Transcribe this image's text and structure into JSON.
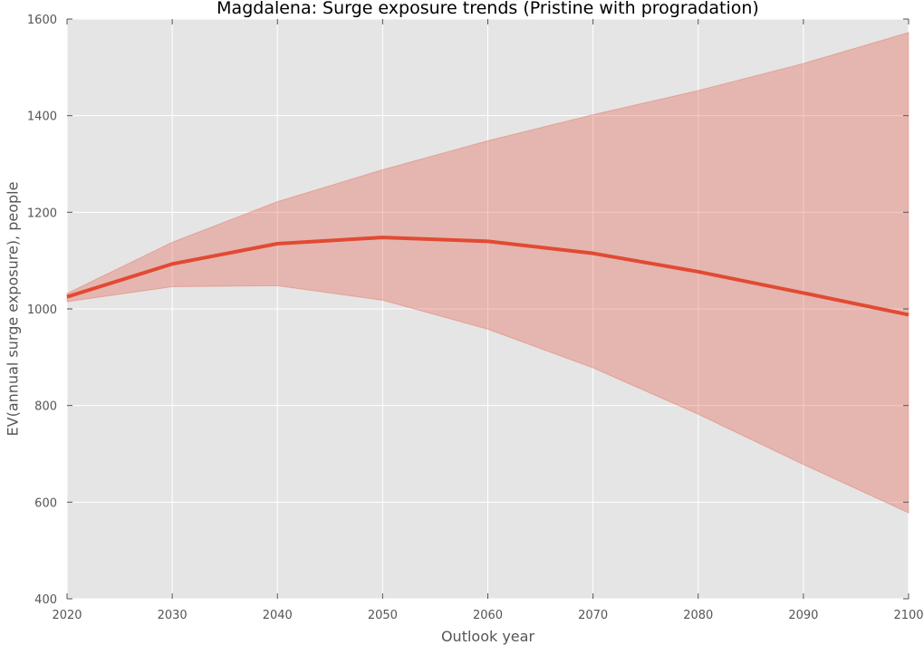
{
  "chart_data": {
    "type": "area",
    "title": "Magdalena: Surge exposure trends (Pristine with progradation)",
    "xlabel": "Outlook year",
    "ylabel": "EV(annual surge exposure), people",
    "xlim": [
      2020,
      2100
    ],
    "ylim": [
      400,
      1600
    ],
    "xticks": [
      2020,
      2030,
      2040,
      2050,
      2060,
      2070,
      2080,
      2090,
      2100
    ],
    "yticks": [
      400,
      600,
      800,
      1000,
      1200,
      1400,
      1600
    ],
    "grid": true,
    "x": [
      2020,
      2030,
      2040,
      2050,
      2060,
      2070,
      2080,
      2090,
      2100
    ],
    "series": [
      {
        "values": [
          1025,
          1093,
          1135,
          1148,
          1140,
          1115,
          1077,
          1033,
          988
        ],
        "color": "#e24a33"
      }
    ],
    "band": {
      "upper": [
        1032,
        1138,
        1222,
        1288,
        1348,
        1402,
        1452,
        1508,
        1572
      ],
      "lower": [
        1015,
        1046,
        1048,
        1018,
        958,
        878,
        782,
        678,
        578
      ],
      "color": "#e24a33"
    },
    "colors": {
      "plot_background": "#e5e5e5",
      "grid": "#ffffff"
    }
  }
}
